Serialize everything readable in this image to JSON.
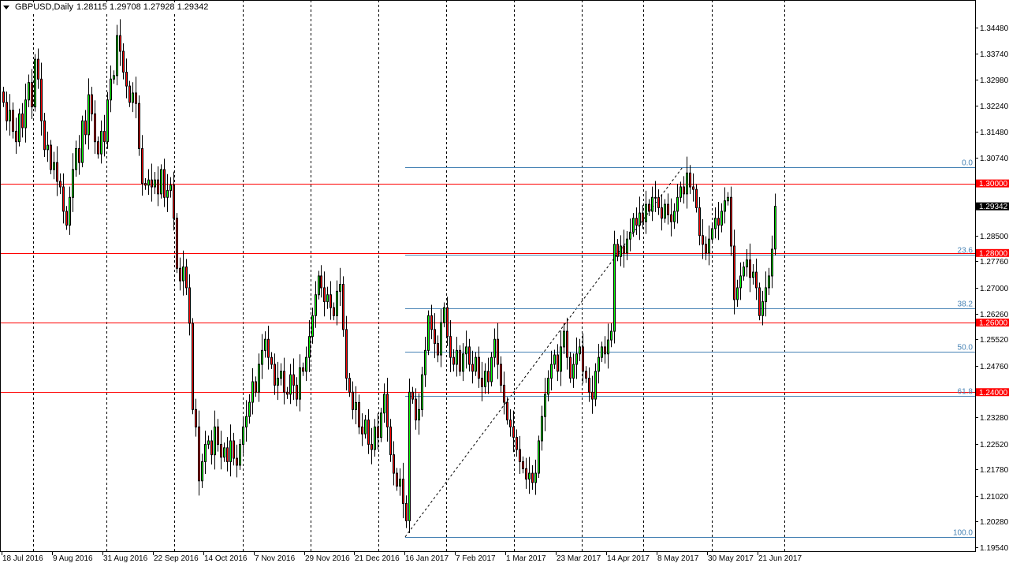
{
  "header": {
    "symbol": "GBPUSD,Daily",
    "values": "1.28115 1.29708 1.27928 1.29342"
  },
  "colors": {
    "bull": "#00ff00",
    "bear": "#ff0000",
    "outline": "#000000",
    "level_line": "#ff0000",
    "fib_line": "#4682b4",
    "current_price_bg": "#000000"
  },
  "chart_data": {
    "type": "candlestick",
    "symbol": "GBPUSD",
    "timeframe": "Daily",
    "ylim": [
      1.1954,
      1.3448
    ],
    "y_ticks": [
      "1.34480",
      "1.33740",
      "1.32980",
      "1.32240",
      "1.31480",
      "1.30740",
      "1.30000",
      "1.28500",
      "1.27760",
      "1.27000",
      "1.26260",
      "1.25520",
      "1.24760",
      "1.23280",
      "1.22520",
      "1.21780",
      "1.21020",
      "1.20280",
      "1.19540"
    ],
    "x_ticks": [
      "18 Jul 2016",
      "9 Aug 2016",
      "31 Aug 2016",
      "22 Sep 2016",
      "14 Oct 2016",
      "7 Nov 2016",
      "29 Nov 2016",
      "21 Dec 2016",
      "16 Jan 2017",
      "7 Feb 2017",
      "1 Mar 2017",
      "23 Mar 2017",
      "14 Apr 2017",
      "8 May 2017",
      "30 May 2017",
      "21 Jun 2017"
    ],
    "close": [
      1.3233,
      1.318,
      1.321,
      1.315,
      1.312,
      1.32,
      1.316,
      1.324,
      1.329,
      1.322,
      1.3357,
      1.33,
      1.318,
      1.3097,
      1.311,
      1.304,
      1.306,
      1.3006,
      1.299,
      1.292,
      1.288,
      1.296,
      1.304,
      1.31,
      1.306,
      1.318,
      1.314,
      1.3255,
      1.32,
      1.312,
      1.3085,
      1.315,
      1.312,
      1.324,
      1.33,
      1.331,
      1.3425,
      1.338,
      1.332,
      1.328,
      1.3233,
      1.326,
      1.323,
      1.31,
      1.3,
      1.2995,
      1.301,
      1.299,
      1.301,
      1.297,
      1.304,
      1.296,
      1.298,
      1.2995,
      1.29,
      1.2756,
      1.272,
      1.276,
      1.27,
      1.2598,
      1.235,
      1.23,
      1.2145,
      1.22,
      1.225,
      1.226,
      1.222,
      1.23,
      1.225,
      1.2213,
      1.224,
      1.22,
      1.226,
      1.221,
      1.219,
      1.225,
      1.23,
      1.233,
      1.2371,
      1.243,
      1.24,
      1.248,
      1.252,
      1.2552,
      1.25,
      1.248,
      1.242,
      1.244,
      1.246,
      1.24,
      1.2394,
      1.245,
      1.242,
      1.238,
      1.247,
      1.246,
      1.25,
      1.256,
      1.262,
      1.268,
      1.2734,
      1.27,
      1.266,
      1.268,
      1.2643,
      1.262,
      1.269,
      1.271,
      1.258,
      1.244,
      1.24,
      1.235,
      1.237,
      1.23,
      1.228,
      1.232,
      1.225,
      1.2235,
      1.23,
      1.227,
      1.234,
      1.2394,
      1.23,
      1.222,
      1.2167,
      1.213,
      1.215,
      1.208,
      1.203,
      1.24,
      1.238,
      1.232,
      1.235,
      1.245,
      1.252,
      1.262,
      1.258,
      1.254,
      1.2507,
      1.26,
      1.2643,
      1.256,
      1.25,
      1.248,
      1.252,
      1.246,
      1.251,
      1.253,
      1.248,
      1.246,
      1.25,
      1.244,
      1.2416,
      1.246,
      1.243,
      1.25,
      1.2552,
      1.248,
      1.242,
      1.2371,
      1.232,
      1.23,
      1.227,
      1.2235,
      1.22,
      1.218,
      1.215,
      1.2167,
      1.214,
      1.2167,
      1.226,
      1.233,
      1.2394,
      1.244,
      1.248,
      1.2507,
      1.246,
      1.253,
      1.2575,
      1.25,
      1.244,
      1.248,
      1.251,
      1.253,
      1.246,
      1.244,
      1.24,
      1.238,
      1.246,
      1.25,
      1.253,
      1.251,
      1.255,
      1.2575,
      1.2825,
      1.279,
      1.282,
      1.28,
      1.284,
      1.286,
      1.29,
      1.288,
      1.2915,
      1.289,
      1.294,
      1.292,
      1.296,
      1.296,
      1.293,
      1.29,
      1.294,
      1.291,
      1.289,
      1.292,
      1.296,
      1.299,
      1.297,
      1.303,
      1.299,
      1.2983,
      1.293,
      1.285,
      1.2825,
      1.28,
      1.284,
      1.287,
      1.29,
      1.288,
      1.292,
      1.295,
      1.296,
      1.282,
      1.2666,
      1.27,
      1.2734,
      1.276,
      1.278,
      1.273,
      1.2745,
      1.27,
      1.262,
      1.266,
      1.27,
      1.2734,
      1.2811,
      1.29342
    ],
    "last_bar": {
      "open": 1.28115,
      "high": 1.29708,
      "low": 1.27928,
      "close": 1.29342
    },
    "current_price": "1.29342",
    "horizontal_levels": [
      {
        "price": 1.3,
        "label": "1.30000"
      },
      {
        "price": 1.28,
        "label": "1.28000"
      },
      {
        "price": 1.26,
        "label": "1.26000"
      },
      {
        "price": 1.24,
        "label": "1.24000"
      }
    ],
    "fibonacci": {
      "high": 1.3047,
      "low": 1.1984,
      "levels": [
        {
          "ratio": 0.0,
          "label": "0.0"
        },
        {
          "ratio": 0.236,
          "label": "23.6"
        },
        {
          "ratio": 0.382,
          "label": "38.2"
        },
        {
          "ratio": 0.5,
          "label": "50.0"
        },
        {
          "ratio": 0.618,
          "label": "61.8"
        },
        {
          "ratio": 1.0,
          "label": "100.0"
        }
      ]
    },
    "grid": "vertical-dashed"
  }
}
